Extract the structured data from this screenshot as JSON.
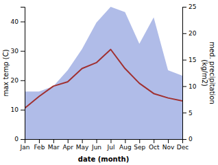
{
  "chart_data": {
    "type": "line",
    "x_label": "date (month)",
    "y_label": "max temp (C)",
    "y2_label": "med. precipitation\n(kg/m2)",
    "categories": [
      "Jan",
      "Feb",
      "Mar",
      "Apr",
      "May",
      "Jun",
      "Jul",
      "Aug",
      "Sep",
      "Oct",
      "Nov",
      "Dec"
    ],
    "series": [
      {
        "type": "area",
        "axis": "y2",
        "color": "#b0bce8",
        "values": [
          9.0,
          9.0,
          10.0,
          13.0,
          17.0,
          22.0,
          25.0,
          24.0,
          18.0,
          23.0,
          13.0,
          12.0
        ]
      },
      {
        "type": "line",
        "color": "#a03030",
        "values": [
          10.5,
          14.5,
          18.0,
          19.5,
          24.0,
          26.0,
          30.5,
          24.0,
          19.0,
          15.5,
          14.0,
          13.0
        ]
      }
    ],
    "ylim": [
      0,
      45
    ],
    "yticks": [
      0,
      10,
      20,
      30,
      40
    ],
    "y2lim": [
      0,
      25
    ],
    "y2ticks": [
      0,
      5,
      10,
      15,
      20,
      25
    ]
  }
}
